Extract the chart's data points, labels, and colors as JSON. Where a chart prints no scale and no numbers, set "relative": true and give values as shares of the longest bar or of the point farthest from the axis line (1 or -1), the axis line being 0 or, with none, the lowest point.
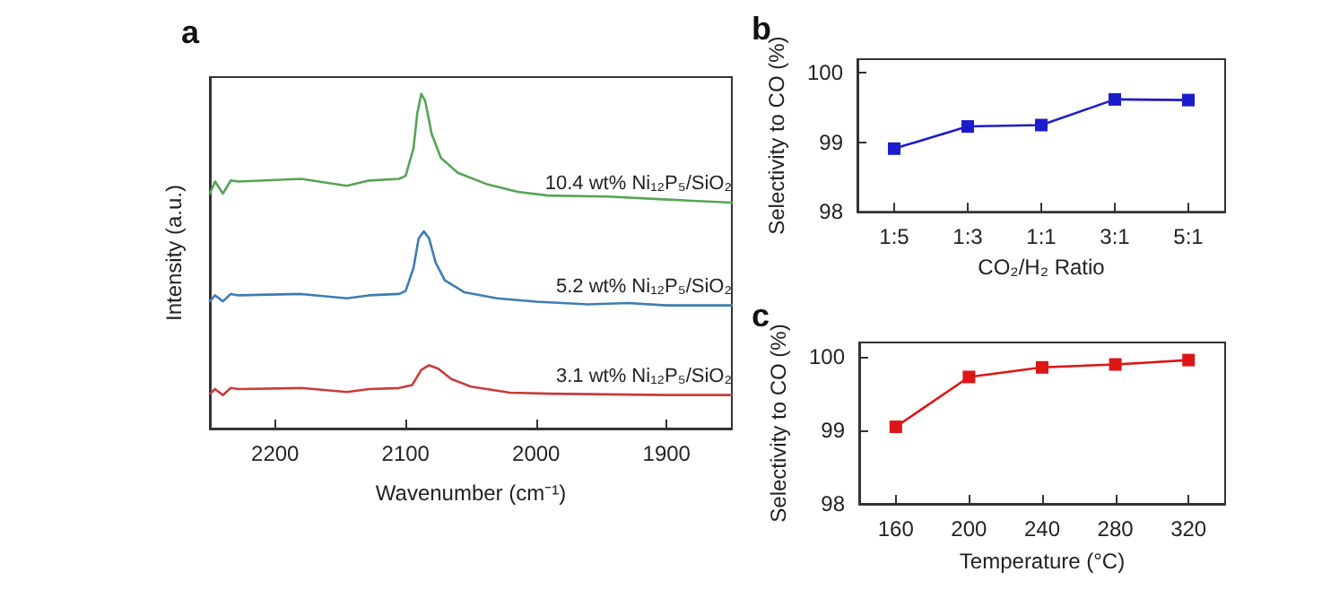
{
  "chart_data": [
    {
      "type": "line",
      "title": "a",
      "xlabel": "Wavenumber (cm⁻¹)",
      "ylabel": "Intensity (a.u.)",
      "relative": true,
      "xlim": [
        2250,
        1850
      ],
      "xticks": [
        2200,
        2100,
        2000,
        1900
      ],
      "grid": false,
      "marker": "none",
      "series": [
        {
          "name": "10.4 wt% Ni₁₂P₅/SiO₂",
          "color": "#55a455",
          "x": [
            2250,
            2246,
            2240,
            2234,
            2228,
            2180,
            2145,
            2128,
            2105,
            2100,
            2094,
            2091,
            2088,
            2085,
            2080,
            2073,
            2060,
            2037,
            2014,
            1991,
            1945,
            1899,
            1850
          ],
          "values": [
            0.702,
            0.738,
            0.702,
            0.741,
            0.738,
            0.746,
            0.725,
            0.741,
            0.746,
            0.755,
            0.836,
            0.943,
            1,
            0.979,
            0.88,
            0.809,
            0.764,
            0.729,
            0.707,
            0.696,
            0.693,
            0.684,
            0.675
          ]
        },
        {
          "name": "5.2 wt% Ni₁₂P₅/SiO₂",
          "color": "#3d7cb3",
          "x": [
            2250,
            2246,
            2240,
            2234,
            2228,
            2180,
            2145,
            2128,
            2105,
            2100,
            2094,
            2090,
            2086,
            2082,
            2077,
            2070,
            2055,
            2030,
            2000,
            1960,
            1930,
            1900,
            1850
          ],
          "values": [
            0.38,
            0.398,
            0.38,
            0.402,
            0.398,
            0.402,
            0.389,
            0.398,
            0.402,
            0.411,
            0.479,
            0.568,
            0.589,
            0.568,
            0.496,
            0.443,
            0.407,
            0.389,
            0.379,
            0.371,
            0.375,
            0.368,
            0.368
          ]
        },
        {
          "name": "3.1 wt% Ni₁₂P₅/SiO₂",
          "color": "#c83c3c",
          "x": [
            2250,
            2246,
            2240,
            2234,
            2228,
            2180,
            2145,
            2128,
            2105,
            2095,
            2088,
            2082,
            2075,
            2065,
            2050,
            2020,
            1990,
            1900,
            1850
          ],
          "values": [
            0.104,
            0.118,
            0.1,
            0.121,
            0.118,
            0.121,
            0.109,
            0.118,
            0.121,
            0.13,
            0.175,
            0.189,
            0.179,
            0.148,
            0.125,
            0.107,
            0.104,
            0.1,
            0.1
          ]
        }
      ]
    },
    {
      "type": "line",
      "title": "b",
      "xlabel": "CO₂/H₂ Ratio",
      "ylabel": "Selectivity to CO (%)",
      "categories": [
        "1:5",
        "1:3",
        "1:1",
        "3:1",
        "5:1"
      ],
      "ylim": [
        98,
        100.2
      ],
      "yticks": [
        98,
        99,
        100
      ],
      "grid": false,
      "marker": "square",
      "series": [
        {
          "color": "#1c1ccc",
          "values": [
            98.91,
            99.23,
            99.25,
            99.62,
            99.61
          ]
        }
      ]
    },
    {
      "type": "line",
      "title": "c",
      "xlabel": "Temperature (°C)",
      "ylabel": "Selectivity to CO (%)",
      "xlim": [
        140,
        340
      ],
      "xticks": [
        160,
        200,
        240,
        280,
        320
      ],
      "ylim": [
        98,
        100.2
      ],
      "yticks": [
        98,
        99,
        100
      ],
      "grid": false,
      "marker": "square",
      "series": [
        {
          "color": "#dd1515",
          "x": [
            160,
            200,
            240,
            280,
            320
          ],
          "values": [
            99.05,
            99.73,
            99.86,
            99.9,
            99.96
          ]
        }
      ]
    }
  ]
}
